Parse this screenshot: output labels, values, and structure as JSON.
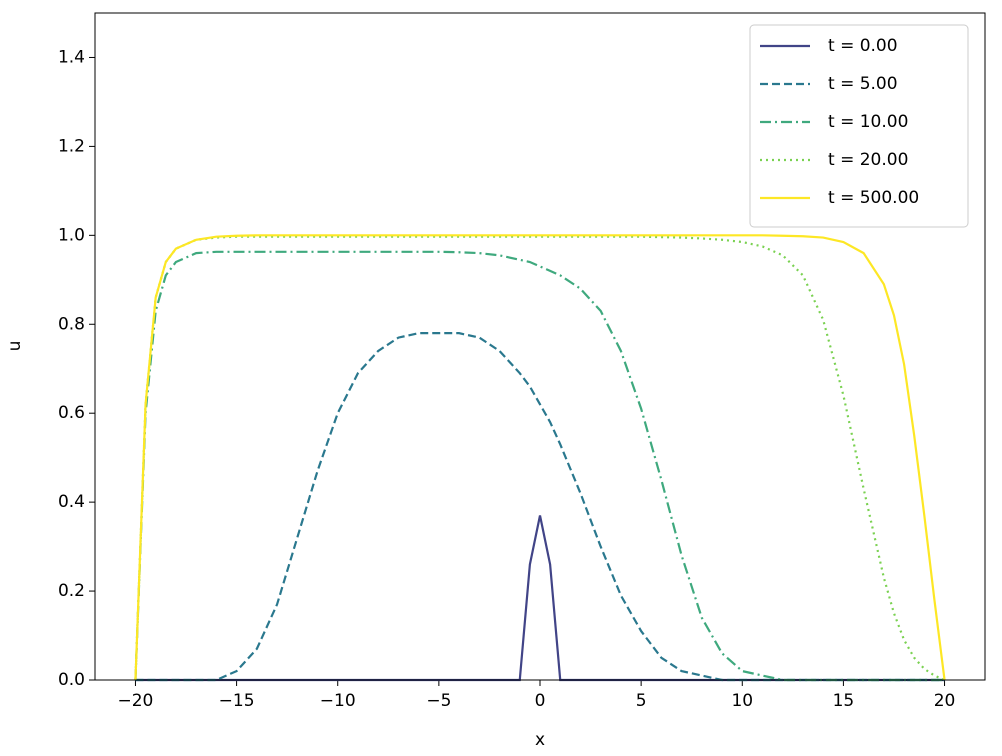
{
  "chart_data": {
    "type": "line",
    "xlabel": "x",
    "ylabel": "u",
    "x": [
      -20,
      -19.5,
      -19,
      -18.5,
      -18,
      -17,
      -16,
      -15,
      -14,
      -13,
      -12,
      -11,
      -10,
      -9,
      -8,
      -7,
      -6,
      -5,
      -4,
      -3,
      -2,
      -1,
      -0.5,
      0,
      0.5,
      1,
      2,
      3,
      4,
      5,
      6,
      7,
      8,
      9,
      10,
      11,
      12,
      13,
      14,
      15,
      16,
      17,
      17.5,
      18,
      18.5,
      19,
      19.5,
      20
    ],
    "series": [
      {
        "name": "t = 0.00",
        "color": "#414487",
        "style": "solid",
        "values": [
          0,
          0,
          0,
          0,
          0,
          0,
          0,
          0,
          0,
          0,
          0,
          0,
          0,
          0,
          0,
          0,
          0,
          0,
          0,
          0,
          0,
          0,
          0.26,
          0.37,
          0.26,
          0,
          0,
          0,
          0,
          0,
          0,
          0,
          0,
          0,
          0,
          0,
          0,
          0,
          0,
          0,
          0,
          0,
          0,
          0,
          0,
          0,
          0,
          0
        ]
      },
      {
        "name": "t = 5.00",
        "color": "#2a788e",
        "style": "dashed",
        "values": [
          0,
          0,
          0,
          0,
          0,
          0,
          0,
          0.02,
          0.07,
          0.17,
          0.32,
          0.47,
          0.6,
          0.69,
          0.74,
          0.77,
          0.78,
          0.78,
          0.78,
          0.77,
          0.74,
          0.69,
          0.66,
          0.62,
          0.58,
          0.53,
          0.42,
          0.3,
          0.19,
          0.11,
          0.05,
          0.02,
          0.01,
          0,
          0,
          0,
          0,
          0,
          0,
          0,
          0,
          0,
          0,
          0,
          0,
          0,
          0,
          0
        ]
      },
      {
        "name": "t = 10.00",
        "color": "#3fa97e",
        "style": "dashdot",
        "values": [
          0,
          0.6,
          0.83,
          0.91,
          0.94,
          0.96,
          0.963,
          0.963,
          0.963,
          0.963,
          0.963,
          0.963,
          0.963,
          0.963,
          0.963,
          0.963,
          0.963,
          0.963,
          0.962,
          0.96,
          0.955,
          0.945,
          0.94,
          0.93,
          0.92,
          0.91,
          0.88,
          0.83,
          0.74,
          0.61,
          0.45,
          0.28,
          0.14,
          0.06,
          0.02,
          0.01,
          0,
          0,
          0,
          0,
          0,
          0,
          0,
          0,
          0,
          0,
          0,
          0
        ]
      },
      {
        "name": "t = 20.00",
        "color": "#7ad151",
        "style": "dotted",
        "values": [
          0,
          0.62,
          0.86,
          0.94,
          0.97,
          0.99,
          0.995,
          0.997,
          0.997,
          0.997,
          0.997,
          0.997,
          0.997,
          0.997,
          0.997,
          0.997,
          0.997,
          0.997,
          0.997,
          0.997,
          0.997,
          0.997,
          0.997,
          0.997,
          0.997,
          0.997,
          0.997,
          0.997,
          0.997,
          0.997,
          0.996,
          0.995,
          0.993,
          0.99,
          0.985,
          0.975,
          0.955,
          0.91,
          0.81,
          0.64,
          0.43,
          0.23,
          0.15,
          0.09,
          0.05,
          0.025,
          0.01,
          0
        ]
      },
      {
        "name": "t = 500.00",
        "color": "#fde725",
        "style": "solid",
        "values": [
          0,
          0.62,
          0.86,
          0.94,
          0.97,
          0.99,
          0.997,
          0.999,
          1,
          1,
          1,
          1,
          1,
          1,
          1,
          1,
          1,
          1,
          1,
          1,
          1,
          1,
          1,
          1,
          1,
          1,
          1,
          1,
          1,
          1,
          1,
          1,
          1,
          1,
          1,
          1,
          0.999,
          0.998,
          0.995,
          0.985,
          0.96,
          0.89,
          0.82,
          0.71,
          0.55,
          0.37,
          0.18,
          0
        ]
      }
    ],
    "xlim": [
      -22,
      22
    ],
    "xticks": [
      {
        "value": -20,
        "label": "−20"
      },
      {
        "value": -15,
        "label": "−15"
      },
      {
        "value": -10,
        "label": "−10"
      },
      {
        "value": -5,
        "label": "−5"
      },
      0,
      5,
      10,
      15,
      20
    ],
    "ylim": [
      0,
      1.5
    ],
    "yticks": [
      {
        "value": 0,
        "label": "0.0"
      },
      0.2,
      0.4,
      0.6,
      0.8,
      {
        "value": 1,
        "label": "1.0"
      },
      1.2,
      1.4
    ],
    "grid": false,
    "legend": "upper right"
  }
}
